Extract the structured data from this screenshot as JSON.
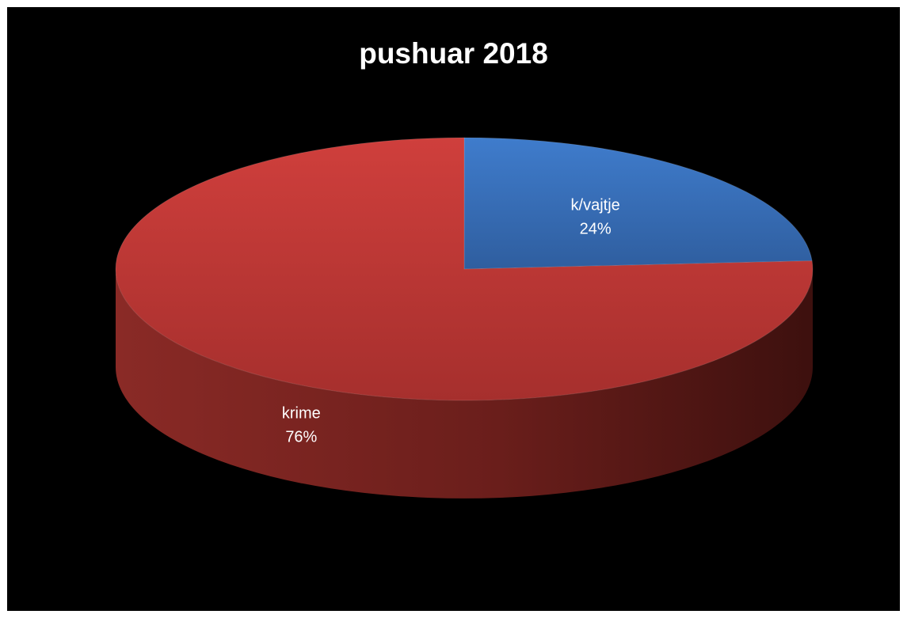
{
  "chart_data": {
    "type": "pie",
    "title": "pushuar 2018",
    "slices": [
      {
        "label": "k/vajtje",
        "value": 24,
        "display": "24%",
        "color": "#3a70c0"
      },
      {
        "label": "krime",
        "value": 76,
        "display": "76%",
        "color": "#c0393a"
      }
    ],
    "style": "3d",
    "legend": "none"
  },
  "colors": {
    "background": "#000000",
    "frame": "#ffffff",
    "text": "#ffffff"
  }
}
